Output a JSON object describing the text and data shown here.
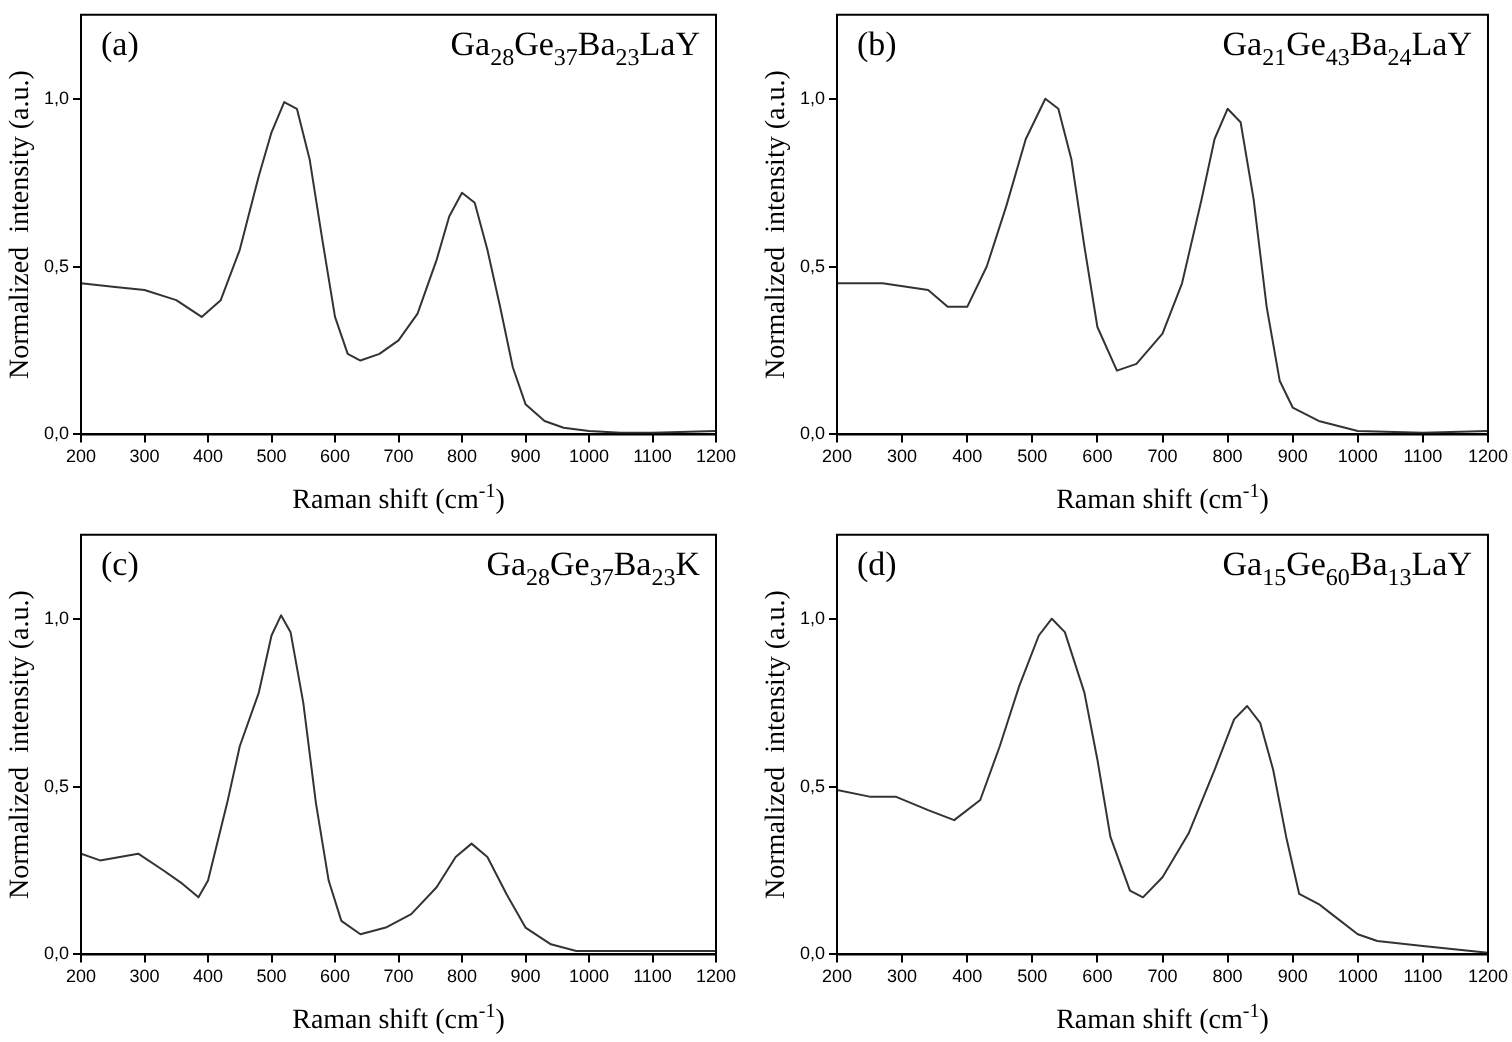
{
  "chart_data": [
    {
      "type": "line",
      "xlabel": "Raman shift (cm$^{-1}$)",
      "ylabel": "Normalized  intensity (a.u.)",
      "annotations": [
        "(a)",
        "Ga$_{28}$Ge$_{37}$Ba$_{23}$LaY"
      ],
      "xlim": [
        200,
        1200
      ],
      "ylim": [
        0,
        1.25
      ],
      "xticks": [
        200,
        300,
        400,
        500,
        600,
        700,
        800,
        900,
        1000,
        1100,
        1200
      ],
      "yticks": [
        {
          "value": 0,
          "label": "0,0"
        },
        {
          "value": 0.5,
          "label": "0,5"
        },
        {
          "value": 1,
          "label": "1,0"
        }
      ],
      "grid": false,
      "legend": false,
      "marker": "none",
      "line_style": "solid",
      "series": [
        {
          "color": "#333333",
          "x": [
            200,
            250,
            300,
            350,
            390,
            420,
            450,
            480,
            500,
            520,
            540,
            560,
            580,
            600,
            620,
            640,
            670,
            700,
            730,
            760,
            780,
            800,
            820,
            840,
            860,
            880,
            900,
            930,
            960,
            1000,
            1050,
            1100,
            1200
          ],
          "values": [
            0.45,
            0.44,
            0.43,
            0.4,
            0.35,
            0.4,
            0.55,
            0.77,
            0.9,
            0.99,
            0.97,
            0.82,
            0.58,
            0.35,
            0.24,
            0.22,
            0.24,
            0.28,
            0.36,
            0.52,
            0.65,
            0.72,
            0.69,
            0.55,
            0.38,
            0.2,
            0.09,
            0.04,
            0.02,
            0.01,
            0.005,
            0.005,
            0.01
          ]
        }
      ]
    },
    {
      "type": "line",
      "xlabel": "Raman shift (cm$^{-1}$)",
      "ylabel": "Normalized  intensity (a.u.)",
      "annotations": [
        "(b)",
        "Ga$_{21}$Ge$_{43}$Ba$_{24}$LaY"
      ],
      "xlim": [
        200,
        1200
      ],
      "ylim": [
        0,
        1.25
      ],
      "xticks": [
        200,
        300,
        400,
        500,
        600,
        700,
        800,
        900,
        1000,
        1100,
        1200
      ],
      "yticks": [
        {
          "value": 0,
          "label": "0,0"
        },
        {
          "value": 0.5,
          "label": "0,5"
        },
        {
          "value": 1,
          "label": "1,0"
        }
      ],
      "grid": false,
      "legend": false,
      "marker": "none",
      "line_style": "solid",
      "series": [
        {
          "color": "#333333",
          "x": [
            200,
            270,
            340,
            370,
            400,
            430,
            460,
            490,
            520,
            540,
            560,
            580,
            600,
            630,
            660,
            700,
            730,
            760,
            780,
            800,
            820,
            840,
            860,
            880,
            900,
            940,
            1000,
            1100,
            1200
          ],
          "values": [
            0.45,
            0.45,
            0.43,
            0.38,
            0.38,
            0.5,
            0.68,
            0.88,
            1.0,
            0.97,
            0.82,
            0.56,
            0.32,
            0.19,
            0.21,
            0.3,
            0.45,
            0.7,
            0.88,
            0.97,
            0.93,
            0.7,
            0.38,
            0.16,
            0.08,
            0.04,
            0.01,
            0.005,
            0.01
          ]
        }
      ]
    },
    {
      "type": "line",
      "xlabel": "Raman shift (cm$^{-1}$)",
      "ylabel": "Normalized  intensity (a.u.)",
      "annotations": [
        "(c)",
        "Ga$_{28}$Ge$_{37}$Ba$_{23}$K"
      ],
      "xlim": [
        200,
        1200
      ],
      "ylim": [
        0,
        1.25
      ],
      "xticks": [
        200,
        300,
        400,
        500,
        600,
        700,
        800,
        900,
        1000,
        1100,
        1200
      ],
      "yticks": [
        {
          "value": 0,
          "label": "0,0"
        },
        {
          "value": 0.5,
          "label": "0,5"
        },
        {
          "value": 1,
          "label": "1,0"
        }
      ],
      "grid": false,
      "legend": false,
      "marker": "none",
      "line_style": "solid",
      "series": [
        {
          "color": "#333333",
          "x": [
            200,
            230,
            290,
            330,
            360,
            385,
            400,
            430,
            450,
            480,
            500,
            515,
            530,
            550,
            570,
            590,
            610,
            640,
            680,
            720,
            760,
            790,
            815,
            840,
            870,
            900,
            940,
            980,
            1100,
            1200
          ],
          "values": [
            0.3,
            0.28,
            0.3,
            0.25,
            0.21,
            0.17,
            0.22,
            0.45,
            0.62,
            0.78,
            0.95,
            1.01,
            0.96,
            0.75,
            0.45,
            0.22,
            0.1,
            0.06,
            0.08,
            0.12,
            0.2,
            0.29,
            0.33,
            0.29,
            0.18,
            0.08,
            0.03,
            0.01,
            0.01,
            0.01
          ]
        }
      ]
    },
    {
      "type": "line",
      "xlabel": "Raman shift (cm$^{-1}$)",
      "ylabel": "Normalized  intensity (a.u.)",
      "annotations": [
        "(d)",
        "Ga$_{15}$Ge$_{60}$Ba$_{13}$LaY"
      ],
      "xlim": [
        200,
        1200
      ],
      "ylim": [
        0,
        1.25
      ],
      "xticks": [
        200,
        300,
        400,
        500,
        600,
        700,
        800,
        900,
        1000,
        1100,
        1200
      ],
      "yticks": [
        {
          "value": 0,
          "label": "0,0"
        },
        {
          "value": 0.5,
          "label": "0,5"
        },
        {
          "value": 1,
          "label": "1,0"
        }
      ],
      "grid": false,
      "legend": false,
      "marker": "none",
      "line_style": "solid",
      "series": [
        {
          "color": "#333333",
          "x": [
            200,
            250,
            290,
            340,
            380,
            420,
            450,
            480,
            510,
            530,
            550,
            580,
            600,
            620,
            650,
            670,
            700,
            740,
            780,
            810,
            830,
            850,
            870,
            890,
            910,
            940,
            960,
            1000,
            1030,
            1100,
            1200
          ],
          "values": [
            0.49,
            0.47,
            0.47,
            0.43,
            0.4,
            0.46,
            0.62,
            0.8,
            0.95,
            1.0,
            0.96,
            0.78,
            0.58,
            0.35,
            0.19,
            0.17,
            0.23,
            0.36,
            0.55,
            0.7,
            0.74,
            0.69,
            0.55,
            0.35,
            0.18,
            0.15,
            0.12,
            0.06,
            0.04,
            0.025,
            0.005
          ]
        }
      ]
    }
  ]
}
